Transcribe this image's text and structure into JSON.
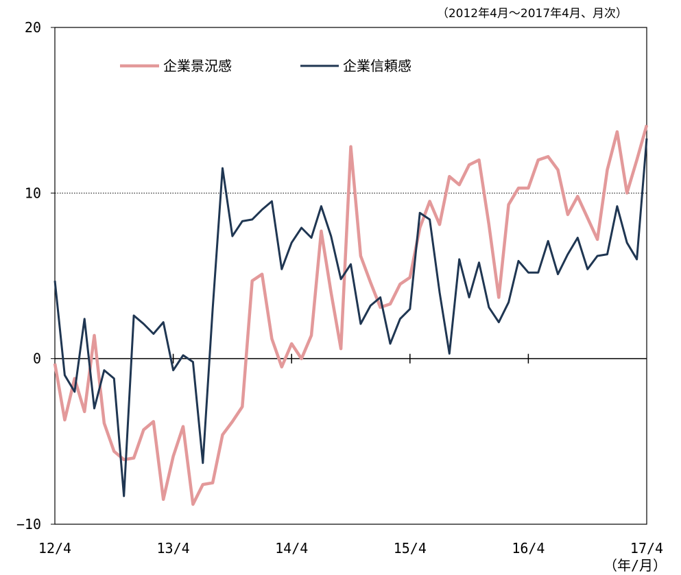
{
  "chart_data": {
    "type": "line",
    "subtitle": "（2012年4月～2017年4月、月次）",
    "xlabel": "（年/月）",
    "ylabel": "",
    "ylim": [
      -10,
      20
    ],
    "yticks": [
      -10,
      0,
      10,
      20
    ],
    "ytick_labels": [
      "−10",
      "0",
      "10",
      "20"
    ],
    "xtick_labels": [
      "12/4",
      "13/4",
      "14/4",
      "15/4",
      "16/4",
      "17/4"
    ],
    "x_start": "2012/4",
    "grid": "dotted lines at 10 and 20; solid zero line",
    "legend_position": "top-left",
    "colors": {
      "series1": "#e3999a",
      "series2": "#1f3652"
    },
    "series": [
      {
        "name": "企業景況感",
        "values": [
          -0.3,
          -3.7,
          -1.2,
          -3.2,
          1.4,
          -3.9,
          -5.6,
          -6.1,
          -6.0,
          -4.3,
          -3.8,
          -8.5,
          -5.9,
          -4.1,
          -8.8,
          -7.6,
          -7.5,
          -4.6,
          -3.8,
          -2.9,
          4.7,
          5.1,
          1.2,
          -0.5,
          0.9,
          0.0,
          1.4,
          7.7,
          4.0,
          0.6,
          12.8,
          6.2,
          4.6,
          3.1,
          3.3,
          4.5,
          4.9,
          7.9,
          9.5,
          8.1,
          11.0,
          10.5,
          11.7,
          12.0,
          8.1,
          3.7,
          9.3,
          10.3,
          10.3,
          12.0,
          12.2,
          11.4,
          8.7,
          9.8,
          8.5,
          7.2,
          11.4,
          13.7,
          10.0,
          12.0,
          14.1
        ]
      },
      {
        "name": "企業信頼感",
        "values": [
          4.7,
          -1.0,
          -2.0,
          2.4,
          -3.0,
          -0.7,
          -1.2,
          -8.3,
          2.6,
          2.1,
          1.5,
          2.2,
          -0.7,
          0.2,
          -0.2,
          -6.3,
          3.0,
          11.5,
          7.4,
          8.3,
          8.4,
          9.0,
          9.5,
          5.4,
          7.0,
          7.9,
          7.3,
          9.2,
          7.4,
          4.8,
          5.7,
          2.1,
          3.2,
          3.7,
          0.9,
          2.4,
          3.0,
          8.8,
          8.4,
          4.0,
          0.3,
          6.0,
          3.7,
          5.8,
          3.1,
          2.2,
          3.4,
          5.9,
          5.2,
          5.2,
          7.1,
          5.1,
          6.3,
          7.3,
          5.4,
          6.2,
          6.3,
          9.2,
          7.0,
          6.0,
          13.3
        ]
      }
    ]
  }
}
